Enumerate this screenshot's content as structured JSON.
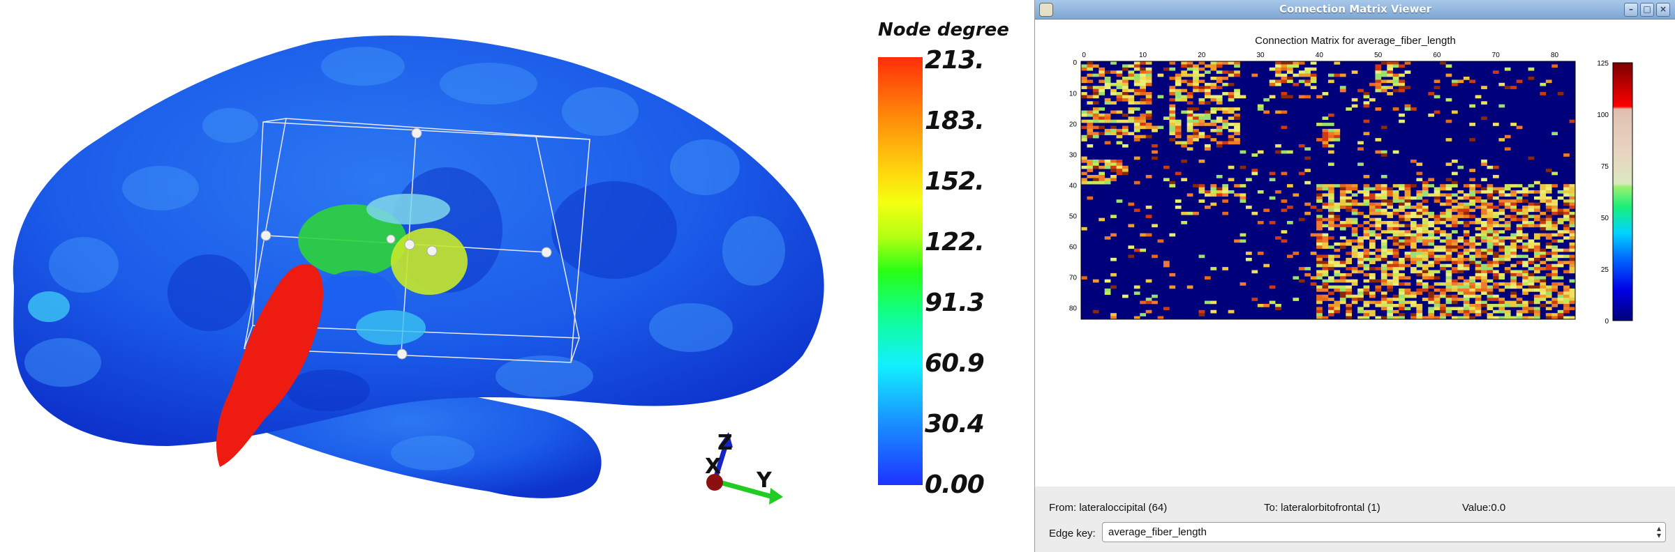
{
  "visualization": {
    "colorbar_title": "Node degree",
    "colorbar_labels": [
      "213.",
      "183.",
      "152.",
      "122.",
      "91.3",
      "60.9",
      "30.4",
      "0.00"
    ],
    "axes_labels": {
      "x": "X",
      "y": "Y",
      "z": "Z"
    },
    "colors": {
      "surface": "#1a56e6",
      "highlight": "#ee1c10"
    }
  },
  "window": {
    "title": "Connection Matrix Viewer",
    "buttons": {
      "minimize": "–",
      "maximize": "□",
      "close": "×"
    },
    "plot": {
      "title": "Connection Matrix for average_fiber_length",
      "x_ticks": [
        "0",
        "10",
        "20",
        "30",
        "40",
        "50",
        "60",
        "70",
        "80"
      ],
      "y_ticks": [
        "0",
        "10",
        "20",
        "30",
        "40",
        "50",
        "60",
        "70",
        "80"
      ],
      "colorbar_ticks": [
        "125",
        "100",
        "75",
        "50",
        "25",
        "0"
      ]
    },
    "status": {
      "from": "From: lateraloccipital (64)",
      "to": "To: lateralorbitofrontal (1)",
      "value": "Value:0.0"
    },
    "edge_key": {
      "label": "Edge key:",
      "value": "average_fiber_length"
    }
  }
}
